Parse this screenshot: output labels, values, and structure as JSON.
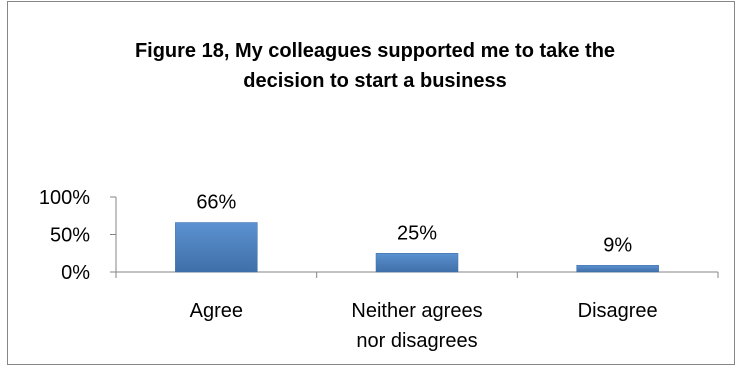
{
  "chart_data": {
    "type": "bar",
    "title_lines": [
      "Figure 18, My colleagues supported me to take the",
      "decision to start a business"
    ],
    "categories": [
      [
        "Agree"
      ],
      [
        "Neither agrees",
        "nor disagrees"
      ],
      [
        "Disagree"
      ]
    ],
    "values": [
      66,
      25,
      9
    ],
    "data_labels": [
      "66%",
      "25%",
      "9%"
    ],
    "y_ticks": [
      0,
      50,
      100
    ],
    "y_tick_labels": [
      "0%",
      "50%",
      "100%"
    ],
    "ylim": [
      0,
      100
    ],
    "grid": false,
    "legend": "none",
    "colors": {
      "bar_fill": "#4f81bd",
      "bar_fill_light": "#5b92d1",
      "bar_fill_dark": "#3f6fa8",
      "axis": "#868686"
    }
  }
}
